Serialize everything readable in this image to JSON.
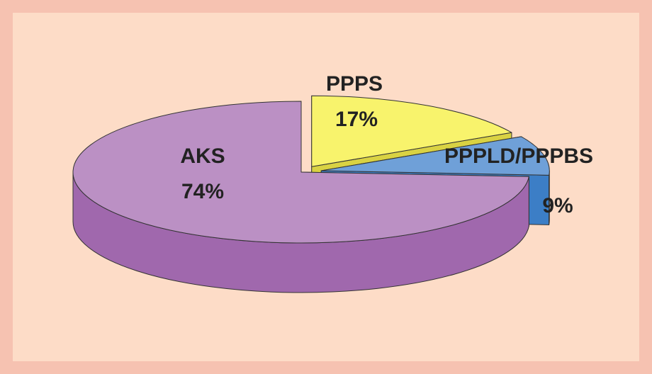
{
  "chart_data": {
    "type": "pie3d",
    "categories": [
      "PPPS",
      "PPPLD/PPPBS",
      "AKS"
    ],
    "values": [
      17,
      9,
      74
    ],
    "value_labels": [
      "17%",
      "9%",
      "74%"
    ],
    "colors": [
      "#f8f36c",
      "#6fa0d8",
      "#bb90c4"
    ],
    "side_colors": [
      "#d9d243",
      "#3c7ec6",
      "#a068ad"
    ],
    "start_angle": -90,
    "explode": [
      0.09,
      0.09,
      0
    ]
  }
}
